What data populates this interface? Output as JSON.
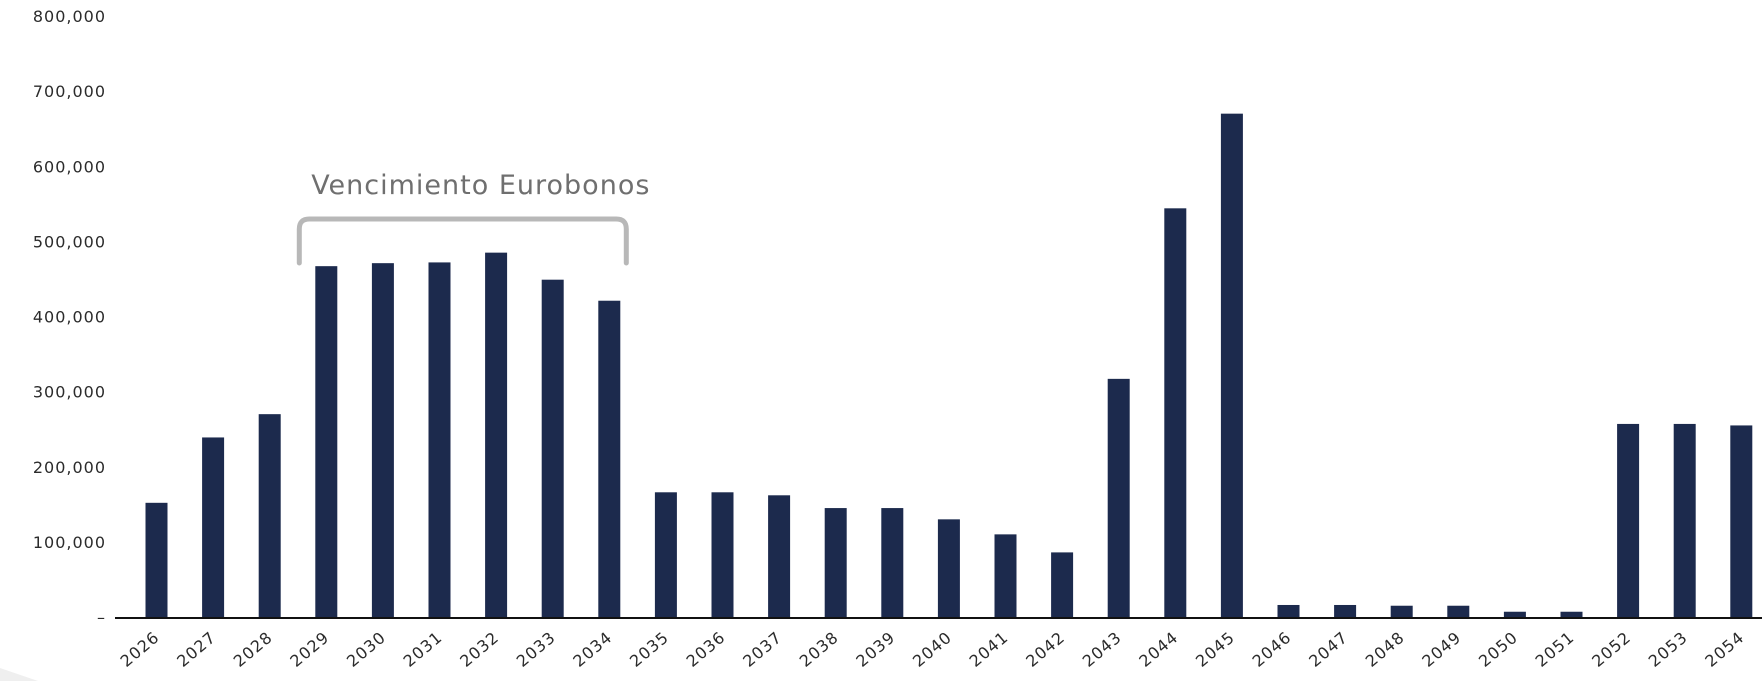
{
  "chart_data": {
    "type": "bar",
    "categories": [
      "2026",
      "2027",
      "2028",
      "2029",
      "2030",
      "2031",
      "2032",
      "2033",
      "2034",
      "2035",
      "2036",
      "2037",
      "2038",
      "2039",
      "2040",
      "2041",
      "2042",
      "2043",
      "2044",
      "2045",
      "2046",
      "2047",
      "2048",
      "2049",
      "2050",
      "2051",
      "2052",
      "2053",
      "2054"
    ],
    "values": [
      152000,
      239000,
      270000,
      467000,
      471000,
      472000,
      485000,
      449000,
      421000,
      166000,
      166000,
      162000,
      145000,
      145000,
      130000,
      110000,
      86000,
      317000,
      544000,
      670000,
      16000,
      16000,
      15000,
      15000,
      7000,
      7000,
      257000,
      257000,
      255000
    ],
    "ylim": [
      0,
      800000
    ],
    "yticks": [
      0,
      100000,
      200000,
      300000,
      400000,
      500000,
      600000,
      700000,
      800000
    ],
    "ytick_labels": [
      "–",
      "100,000",
      "200,000",
      "300,000",
      "400,000",
      "500,000",
      "600,000",
      "700,000",
      "800,000"
    ],
    "annotation": {
      "text": "Vencimiento Eurobonos",
      "from_category": "2029",
      "to_category": "2034"
    },
    "grid": false,
    "bar_color": "#1c2a4d",
    "bracket_color": "#b8b8b8",
    "annotation_color": "#6f6f6f"
  }
}
